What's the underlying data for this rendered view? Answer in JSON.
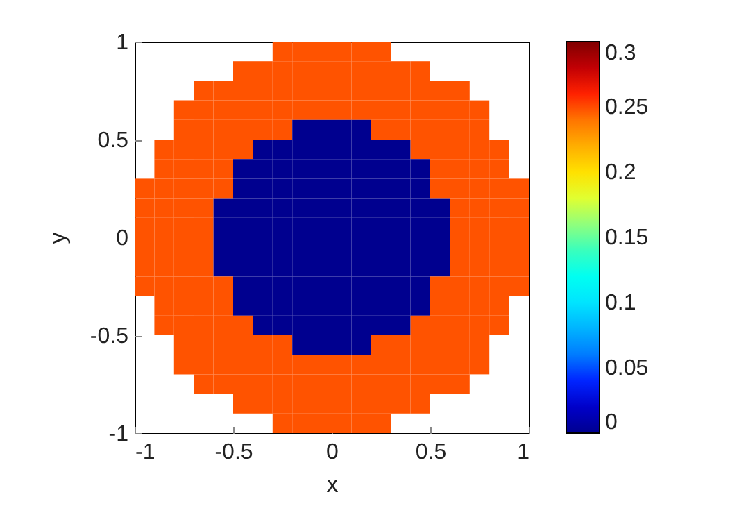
{
  "chart_data": {
    "type": "heatmap",
    "xlabel": "x",
    "ylabel": "y",
    "xlim": [
      -1,
      1
    ],
    "ylim": [
      -1,
      1
    ],
    "xticks": [
      -1,
      -0.5,
      0,
      0.5,
      1
    ],
    "yticks": [
      -1,
      -0.5,
      0,
      0.5,
      1
    ],
    "clim": [
      0,
      0.3
    ],
    "cticks": [
      0,
      0.05,
      0.1,
      0.15,
      0.2,
      0.25,
      0.3
    ],
    "cells": [
      [
        null,
        null,
        null,
        null,
        null,
        null,
        null,
        0.25,
        0.25,
        0.25,
        0.25,
        0.25,
        0.25,
        null,
        null,
        null,
        null,
        null,
        null,
        null
      ],
      [
        null,
        null,
        null,
        null,
        null,
        0.25,
        0.25,
        0.25,
        0.25,
        0.25,
        0.25,
        0.25,
        0.25,
        0.25,
        0.25,
        null,
        null,
        null,
        null,
        null
      ],
      [
        null,
        null,
        null,
        0.25,
        0.25,
        0.25,
        0.25,
        0.25,
        0.25,
        0.25,
        0.25,
        0.25,
        0.25,
        0.25,
        0.25,
        0.25,
        0.25,
        null,
        null,
        null
      ],
      [
        null,
        null,
        0.25,
        0.25,
        0.25,
        0.25,
        0.25,
        0.25,
        0.25,
        0.25,
        0.25,
        0.25,
        0.25,
        0.25,
        0.25,
        0.25,
        0.25,
        0.25,
        null,
        null
      ],
      [
        null,
        null,
        0.25,
        0.25,
        0.25,
        0.25,
        0.25,
        0.25,
        0,
        0,
        0,
        0,
        0.25,
        0.25,
        0.25,
        0.25,
        0.25,
        0.25,
        null,
        null
      ],
      [
        null,
        0.25,
        0.25,
        0.25,
        0.25,
        0.25,
        0,
        0,
        0,
        0,
        0,
        0,
        0,
        0,
        0.25,
        0.25,
        0.25,
        0.25,
        0.25,
        null
      ],
      [
        null,
        0.25,
        0.25,
        0.25,
        0.25,
        0,
        0,
        0,
        0,
        0,
        0,
        0,
        0,
        0,
        0,
        0.25,
        0.25,
        0.25,
        0.25,
        null
      ],
      [
        0.25,
        0.25,
        0.25,
        0.25,
        0.25,
        0,
        0,
        0,
        0,
        0,
        0,
        0,
        0,
        0,
        0,
        0.25,
        0.25,
        0.25,
        0.25,
        0.25
      ],
      [
        0.25,
        0.25,
        0.25,
        0.25,
        0,
        0,
        0,
        0,
        0,
        0,
        0,
        0,
        0,
        0,
        0,
        0,
        0.25,
        0.25,
        0.25,
        0.25
      ],
      [
        0.25,
        0.25,
        0.25,
        0.25,
        0,
        0,
        0,
        0,
        0,
        0,
        0,
        0,
        0,
        0,
        0,
        0,
        0.25,
        0.25,
        0.25,
        0.25
      ],
      [
        0.25,
        0.25,
        0.25,
        0.25,
        0,
        0,
        0,
        0,
        0,
        0,
        0,
        0,
        0,
        0,
        0,
        0,
        0.25,
        0.25,
        0.25,
        0.25
      ],
      [
        0.25,
        0.25,
        0.25,
        0.25,
        0,
        0,
        0,
        0,
        0,
        0,
        0,
        0,
        0,
        0,
        0,
        0,
        0.25,
        0.25,
        0.25,
        0.25
      ],
      [
        0.25,
        0.25,
        0.25,
        0.25,
        0.25,
        0,
        0,
        0,
        0,
        0,
        0,
        0,
        0,
        0,
        0,
        0.25,
        0.25,
        0.25,
        0.25,
        0.25
      ],
      [
        null,
        0.25,
        0.25,
        0.25,
        0.25,
        0,
        0,
        0,
        0,
        0,
        0,
        0,
        0,
        0,
        0,
        0.25,
        0.25,
        0.25,
        0.25,
        null
      ],
      [
        null,
        0.25,
        0.25,
        0.25,
        0.25,
        0.25,
        0,
        0,
        0,
        0,
        0,
        0,
        0,
        0,
        0.25,
        0.25,
        0.25,
        0.25,
        0.25,
        null
      ],
      [
        null,
        null,
        0.25,
        0.25,
        0.25,
        0.25,
        0.25,
        0.25,
        0,
        0,
        0,
        0,
        0.25,
        0.25,
        0.25,
        0.25,
        0.25,
        0.25,
        null,
        null
      ],
      [
        null,
        null,
        0.25,
        0.25,
        0.25,
        0.25,
        0.25,
        0.25,
        0.25,
        0.25,
        0.25,
        0.25,
        0.25,
        0.25,
        0.25,
        0.25,
        0.25,
        0.25,
        null,
        null
      ],
      [
        null,
        null,
        null,
        0.25,
        0.25,
        0.25,
        0.25,
        0.25,
        0.25,
        0.25,
        0.25,
        0.25,
        0.25,
        0.25,
        0.25,
        0.25,
        0.25,
        null,
        null,
        null
      ],
      [
        null,
        null,
        null,
        null,
        null,
        0.25,
        0.25,
        0.25,
        0.25,
        0.25,
        0.25,
        0.25,
        0.25,
        0.25,
        0.25,
        null,
        null,
        null,
        null,
        null
      ],
      [
        null,
        null,
        null,
        null,
        null,
        null,
        null,
        0.25,
        0.25,
        0.25,
        0.25,
        0.25,
        0.25,
        null,
        null,
        null,
        null,
        null,
        null,
        null
      ]
    ]
  }
}
